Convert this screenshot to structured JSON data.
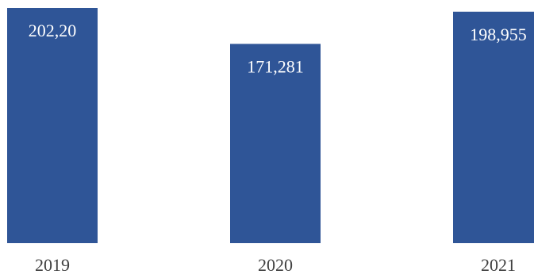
{
  "chart_data": {
    "type": "bar",
    "categories": [
      "2019",
      "2020",
      "2021"
    ],
    "values": [
      202.2,
      171.281,
      198.955
    ],
    "data_labels": [
      "202,20",
      "171,281",
      "198,955"
    ],
    "title": "",
    "xlabel": "",
    "ylabel": "",
    "ylim": [
      0,
      202.2
    ],
    "grid": false,
    "legend": "none",
    "colors": {
      "bar": "#2f5597",
      "label": "#ffffff",
      "tick": "#404040"
    }
  }
}
